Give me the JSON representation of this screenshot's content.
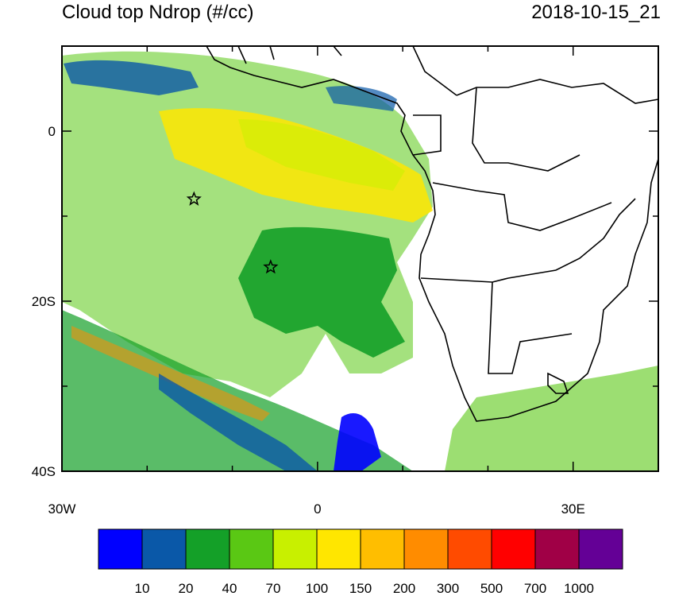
{
  "header": {
    "title": "Cloud top Ndrop (#/cc)",
    "timestamp": "2018-10-15_21"
  },
  "map": {
    "lon_range": [
      -30,
      40
    ],
    "lat_range": [
      -40,
      10
    ],
    "lon_ticks": [
      {
        "value": -30,
        "label": "30W"
      },
      {
        "value": 0,
        "label": "0"
      },
      {
        "value": 30,
        "label": "30E"
      }
    ],
    "lat_ticks": [
      {
        "value": 0,
        "label": "0"
      },
      {
        "value": -20,
        "label": "20S"
      },
      {
        "value": -40,
        "label": "40S"
      }
    ],
    "markers": [
      {
        "name": "star-marker",
        "lon": -14.5,
        "lat": -8
      },
      {
        "name": "star-marker",
        "lon": -5.5,
        "lat": -16
      }
    ]
  },
  "colorbar": {
    "labels": [
      "10",
      "20",
      "40",
      "70",
      "100",
      "150",
      "200",
      "300",
      "500",
      "700",
      "1000"
    ],
    "colors": [
      "#0000ff",
      "#0a58a8",
      "#14a028",
      "#5ac814",
      "#c8f000",
      "#ffe600",
      "#ffbe00",
      "#ff8c00",
      "#ff4b00",
      "#ff0000",
      "#a00046",
      "#640096"
    ]
  }
}
